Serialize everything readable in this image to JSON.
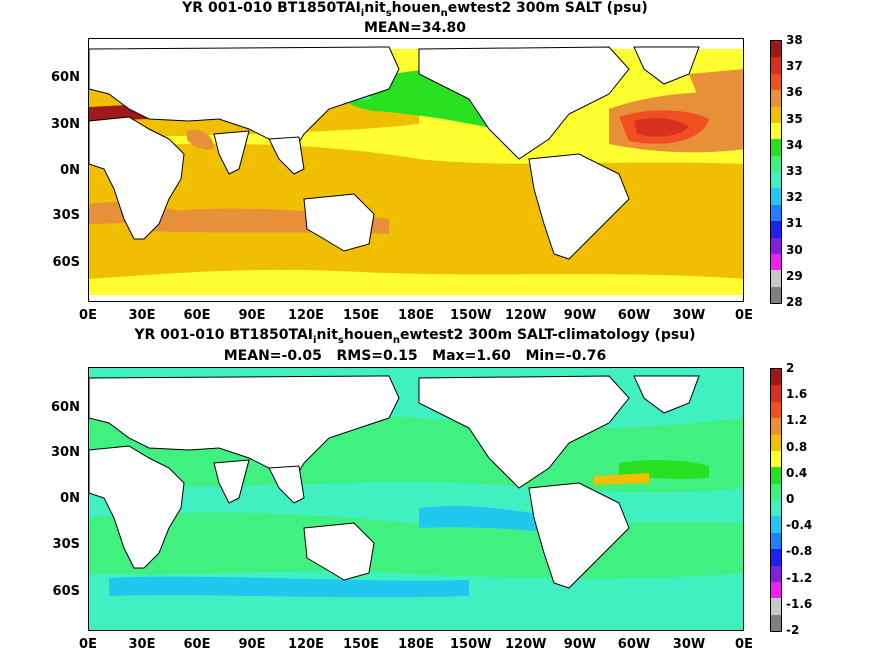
{
  "panel1": {
    "title_line1": {
      "prefix": "YR 001-010 BT1850TAI",
      "sub1": "i",
      "mid1": "nit",
      "sub2": "s",
      "mid2": "houen",
      "sub3": "n",
      "suffix": "ewtest2 300m SALT (psu)"
    },
    "title_line2": "MEAN=34.80",
    "colorbar": {
      "ticks": [
        "38",
        "37",
        "36",
        "35",
        "34",
        "33",
        "32",
        "31",
        "30",
        "29",
        "28"
      ],
      "colors": [
        "#a01818",
        "#d83020",
        "#f05020",
        "#e89038",
        "#f0c000",
        "#ffff30",
        "#28e020",
        "#40f080",
        "#40f0c0",
        "#20c8f0",
        "#2080ff",
        "#2020f0",
        "#8020e0",
        "#f020f0",
        "#c8c8c8",
        "#808080"
      ]
    }
  },
  "panel2": {
    "title_line1": {
      "prefix": "YR 001-010 BT1850TAI",
      "sub1": "i",
      "mid1": "nit",
      "sub2": "s",
      "mid2": "houen",
      "sub3": "n",
      "suffix": "ewtest2 300m SALT-climatology (psu)"
    },
    "title_line2": "MEAN=-0.05   RMS=0.15   Max=1.60   Min=-0.76",
    "colorbar": {
      "ticks": [
        "2",
        "1.6",
        "1.2",
        "0.8",
        "0.4",
        "0",
        "-0.4",
        "-0.8",
        "-1.2",
        "-1.6",
        "-2"
      ],
      "colors": [
        "#a01818",
        "#d83020",
        "#f05020",
        "#e89038",
        "#f0c000",
        "#ffff30",
        "#28e020",
        "#40f080",
        "#40f0c0",
        "#20c8f0",
        "#2080ff",
        "#2020f0",
        "#8020e0",
        "#f020f0",
        "#c8c8c8",
        "#808080"
      ]
    }
  },
  "axes": {
    "lat_labels": [
      "60N",
      "30N",
      "0N",
      "30S",
      "60S"
    ],
    "lon_labels": [
      "0E",
      "30E",
      "60E",
      "90E",
      "120E",
      "150E",
      "180E",
      "150W",
      "120W",
      "90W",
      "60W",
      "30W",
      "0E"
    ]
  }
}
